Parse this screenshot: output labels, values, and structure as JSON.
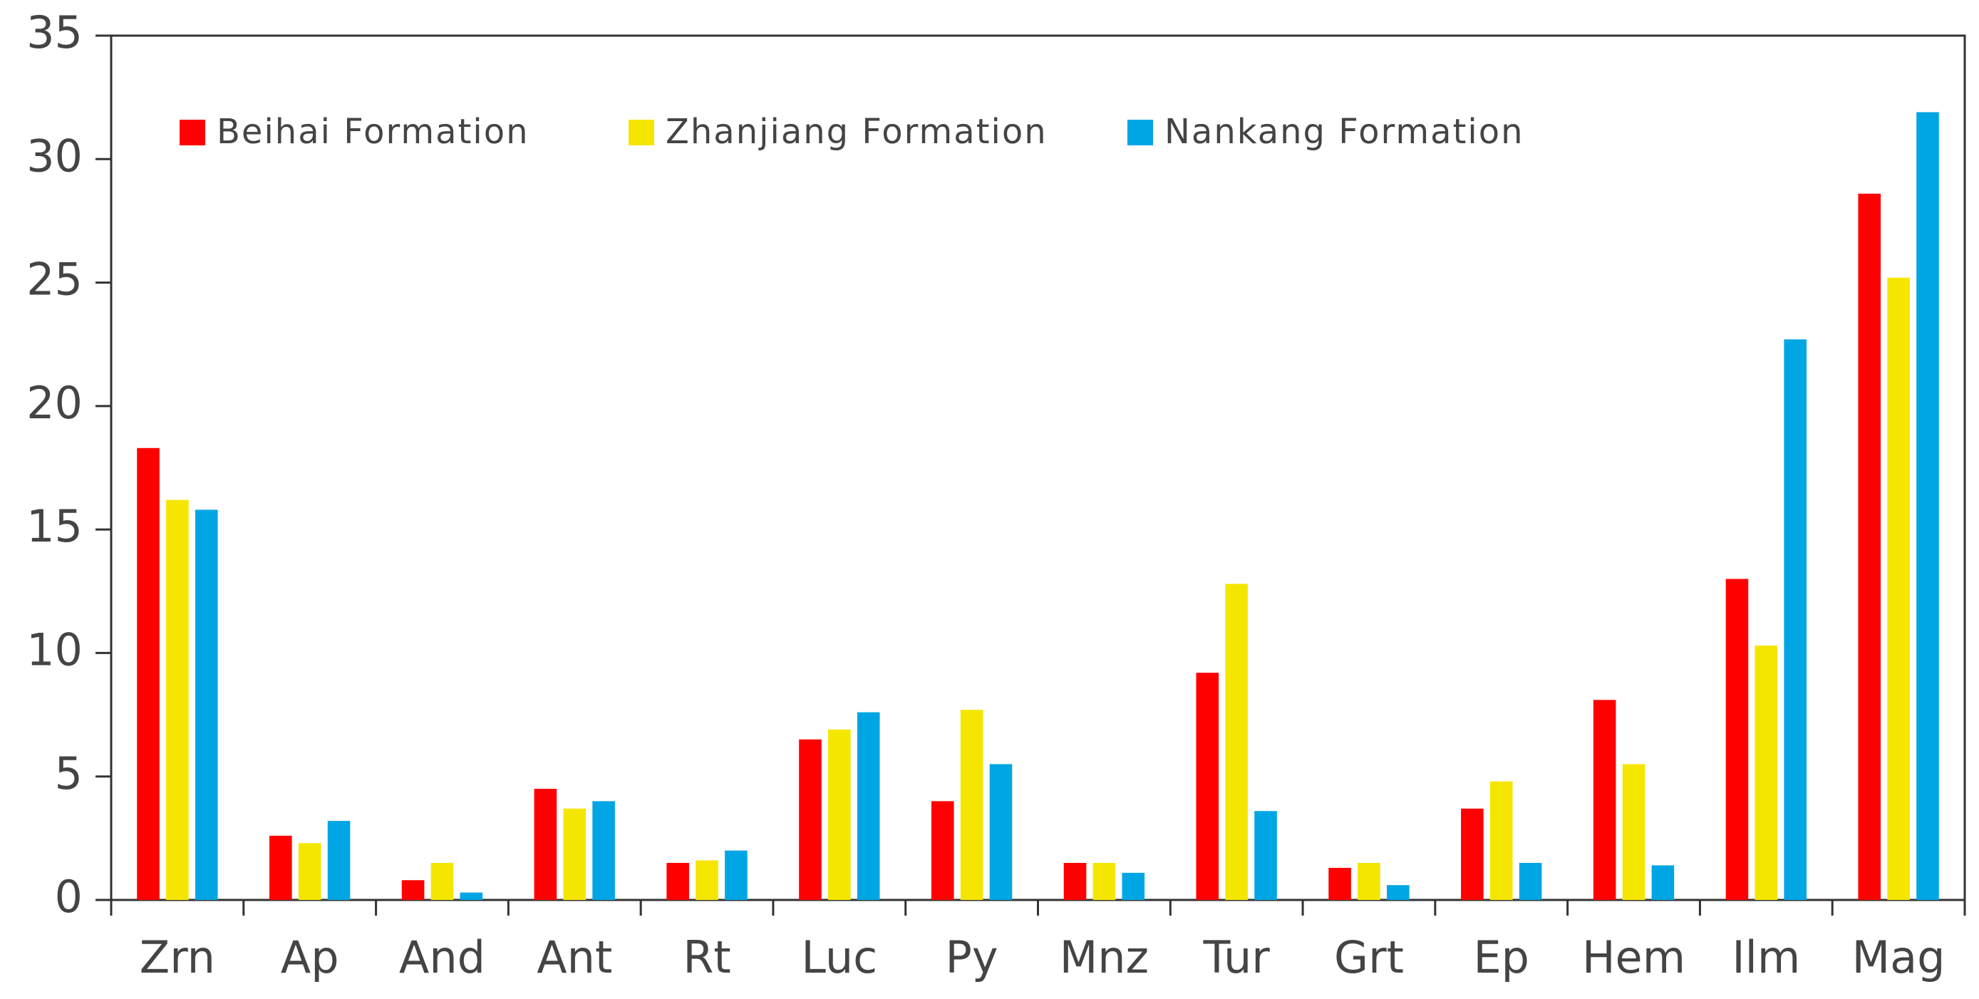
{
  "chart_data": {
    "type": "bar",
    "categories": [
      "Zrn",
      "Ap",
      "And",
      "Ant",
      "Rt",
      "Luc",
      "Py",
      "Mnz",
      "Tur",
      "Grt",
      "Ep",
      "Hem",
      "Ilm",
      "Mag"
    ],
    "series": [
      {
        "name": "Beihai Formation",
        "color": "#ff0000",
        "values": [
          18.3,
          2.6,
          0.8,
          4.5,
          1.5,
          6.5,
          4.0,
          1.5,
          9.2,
          1.3,
          3.7,
          8.1,
          13.0,
          28.6
        ]
      },
      {
        "name": "Zhanjiang Formation",
        "color": "#f5e600",
        "values": [
          16.2,
          2.3,
          1.5,
          3.7,
          1.6,
          6.9,
          7.7,
          1.5,
          12.8,
          1.5,
          4.8,
          5.5,
          10.3,
          25.2
        ]
      },
      {
        "name": "Nankang Formation",
        "color": "#00a6e3",
        "values": [
          15.8,
          3.2,
          0.3,
          4.0,
          2.0,
          7.6,
          5.5,
          1.1,
          3.6,
          0.6,
          1.5,
          1.4,
          22.7,
          31.9
        ]
      }
    ],
    "ylim": [
      0,
      35
    ],
    "yticks": [
      0,
      5,
      10,
      15,
      20,
      25,
      30,
      35
    ],
    "grid": false,
    "legend": "upper left"
  }
}
